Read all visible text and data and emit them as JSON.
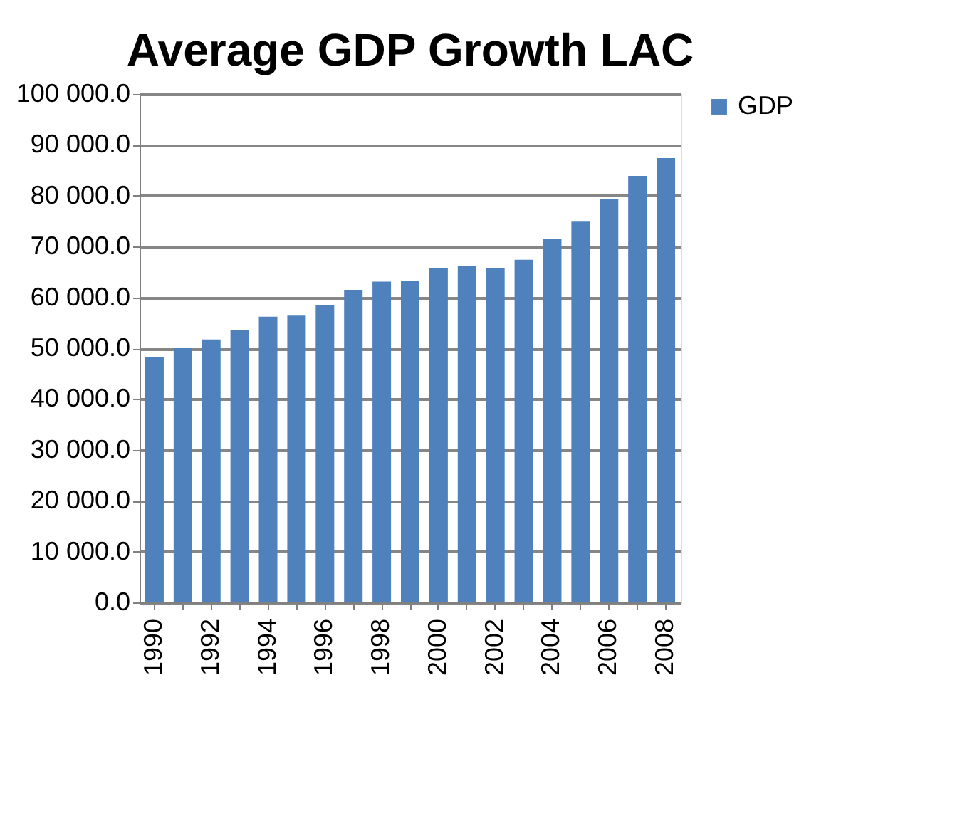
{
  "chart_data": {
    "type": "bar",
    "title": "Average GDP Growth LAC",
    "categories": [
      "1990",
      null,
      "1992",
      null,
      "1994",
      null,
      "1996",
      null,
      "1998",
      null,
      "2000",
      null,
      "2002",
      null,
      "2004",
      null,
      "2006",
      null,
      "2008"
    ],
    "series": [
      {
        "name": "GDP",
        "color": "#4f81bd",
        "values": [
          48300,
          50000,
          51700,
          53600,
          56200,
          56400,
          58400,
          61500,
          63100,
          63300,
          65800,
          66100,
          65800,
          67400,
          71500,
          74900,
          79300,
          83900,
          87400
        ]
      }
    ],
    "ylim": [
      0,
      100000
    ],
    "yticks": [
      {
        "value": 0,
        "label": "0.0"
      },
      {
        "value": 10000,
        "label": "10 000.0"
      },
      {
        "value": 20000,
        "label": "20 000.0"
      },
      {
        "value": 30000,
        "label": "30 000.0"
      },
      {
        "value": 40000,
        "label": "40 000.0"
      },
      {
        "value": 50000,
        "label": "50 000.0"
      },
      {
        "value": 60000,
        "label": "60 000.0"
      },
      {
        "value": 70000,
        "label": "70 000.0"
      },
      {
        "value": 80000,
        "label": "80 000.0"
      },
      {
        "value": 90000,
        "label": "90 000.0"
      },
      {
        "value": 100000,
        "label": "100 000.0"
      }
    ],
    "grid": "y",
    "legend": "right"
  }
}
